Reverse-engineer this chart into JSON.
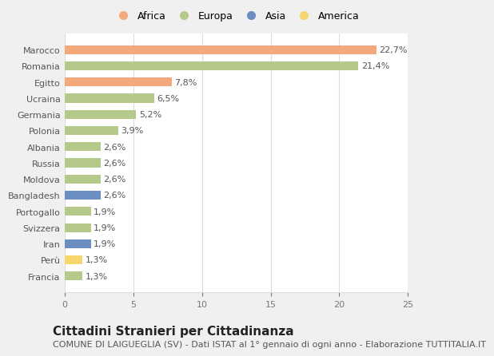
{
  "countries": [
    "Francia",
    "Perù",
    "Iran",
    "Svizzera",
    "Portogallo",
    "Bangladesh",
    "Moldova",
    "Russia",
    "Albania",
    "Polonia",
    "Germania",
    "Ucraina",
    "Egitto",
    "Romania",
    "Marocco"
  ],
  "values": [
    1.3,
    1.3,
    1.9,
    1.9,
    1.9,
    2.6,
    2.6,
    2.6,
    2.6,
    3.9,
    5.2,
    6.5,
    7.8,
    21.4,
    22.7
  ],
  "labels": [
    "1,3%",
    "1,3%",
    "1,9%",
    "1,9%",
    "1,9%",
    "2,6%",
    "2,6%",
    "2,6%",
    "2,6%",
    "3,9%",
    "5,2%",
    "6,5%",
    "7,8%",
    "21,4%",
    "22,7%"
  ],
  "colors": [
    "#b5c98a",
    "#f5d76e",
    "#6b8fc2",
    "#b5c98a",
    "#b5c98a",
    "#6b8fc2",
    "#b5c98a",
    "#b5c98a",
    "#b5c98a",
    "#b5c98a",
    "#b5c98a",
    "#b5c98a",
    "#f5a87b",
    "#b5c98a",
    "#f5a87b"
  ],
  "legend_labels": [
    "Africa",
    "Europa",
    "Asia",
    "America"
  ],
  "legend_colors": [
    "#f5a87b",
    "#b5c98a",
    "#6b8fc2",
    "#f5d76e"
  ],
  "title": "Cittadini Stranieri per Cittadinanza",
  "subtitle": "COMUNE DI LAIGUEGLIA (SV) - Dati ISTAT al 1° gennaio di ogni anno - Elaborazione TUTTITALIA.IT",
  "xlim": [
    0,
    25
  ],
  "xticks": [
    0,
    5,
    10,
    15,
    20,
    25
  ],
  "figure_bg": "#f0f0f0",
  "chart_bg": "#ffffff",
  "grid_color": "#dddddd",
  "title_fontsize": 11,
  "subtitle_fontsize": 8,
  "label_fontsize": 8,
  "tick_fontsize": 8,
  "bar_height": 0.55
}
